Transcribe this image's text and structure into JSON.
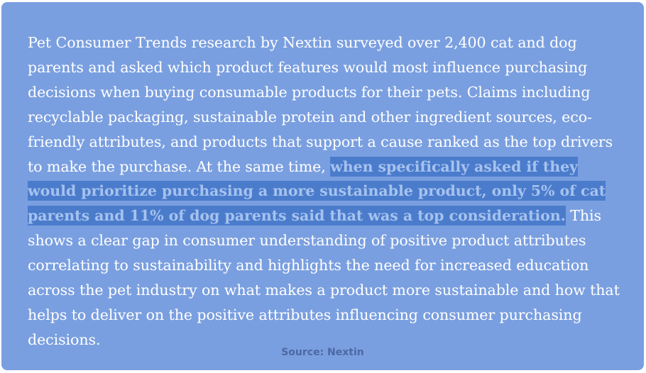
{
  "quote": {
    "before": "Pet Consumer Trends research by Nextin surveyed over 2,400 cat and dog parents and asked which product features would most influence purchasing decisions when buying consumable products for their pets. Claims including recyclable packaging, sustainable protein and other ingredient sources, eco-friendly attributes, and products that support a cause ranked as the top drivers to make the purchase. At the same time, ",
    "highlight": "when specifically asked if they would prioritize purchasing a more sustainable product, only 5% of cat parents and 11% of dog parents said that was a top consideration.",
    "after": " This shows a clear gap in consumer understanding of positive product attributes correlating to sustainability and highlights the need for increased education across the pet industry on what makes a product more sustainable and how that helps to deliver on the positive attributes influencing consumer purchasing decisions."
  },
  "source": "Source: Nextin",
  "colors": {
    "card_background": "#7a9fe0",
    "body_text": "#ffffff",
    "highlight_background": "#4b7ccc",
    "highlight_text": "#a6c2ee",
    "source_text": "#4c68a3"
  }
}
